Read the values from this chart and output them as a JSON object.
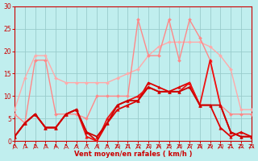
{
  "background_color": "#c0eeee",
  "grid_color": "#99cccc",
  "xlabel": "Vent moyen/en rafales ( km/h )",
  "xlim": [
    0,
    23
  ],
  "ylim": [
    0,
    30
  ],
  "yticks": [
    0,
    5,
    10,
    15,
    20,
    25,
    30
  ],
  "xticks": [
    0,
    1,
    2,
    3,
    4,
    5,
    6,
    7,
    8,
    9,
    10,
    11,
    12,
    13,
    14,
    15,
    16,
    17,
    18,
    19,
    20,
    21,
    22,
    23
  ],
  "series": [
    {
      "x": [
        0,
        1,
        2,
        3,
        4,
        5,
        6,
        7,
        8,
        9,
        10,
        11,
        12,
        13,
        14,
        15,
        16,
        17,
        18,
        19,
        20,
        21,
        22,
        23
      ],
      "y": [
        7,
        14,
        19,
        19,
        14,
        13,
        13,
        13,
        13,
        13,
        14,
        15,
        16,
        19,
        21,
        22,
        22,
        22,
        22,
        21,
        19,
        16,
        7,
        7
      ],
      "color": "#ffaaaa",
      "linewidth": 1.0,
      "marker": "D",
      "markersize": 2.0
    },
    {
      "x": [
        0,
        1,
        2,
        3,
        4,
        5,
        6,
        7,
        8,
        9,
        10,
        11,
        12,
        13,
        14,
        15,
        16,
        17,
        18,
        19,
        20,
        21,
        22,
        23
      ],
      "y": [
        6,
        4,
        18,
        18,
        6,
        6,
        6,
        5,
        10,
        10,
        10,
        10,
        27,
        19,
        19,
        27,
        18,
        27,
        23,
        18,
        8,
        6,
        6,
        6
      ],
      "color": "#ff8888",
      "linewidth": 1.0,
      "marker": "D",
      "markersize": 2.0
    },
    {
      "x": [
        0,
        1,
        2,
        3,
        4,
        5,
        6,
        7,
        8,
        9,
        10,
        11,
        12,
        13,
        14,
        15,
        16,
        17,
        18,
        19,
        20,
        21,
        22,
        23
      ],
      "y": [
        1,
        4,
        6,
        3,
        3,
        6,
        7,
        2,
        0,
        4,
        7,
        8,
        9,
        13,
        12,
        11,
        12,
        13,
        8,
        8,
        3,
        1,
        2,
        1
      ],
      "color": "#dd0000",
      "linewidth": 1.3,
      "marker": "^",
      "markersize": 2.5
    },
    {
      "x": [
        0,
        1,
        2,
        3,
        4,
        5,
        6,
        7,
        8,
        9,
        10,
        11,
        12,
        13,
        14,
        15,
        16,
        17,
        18,
        19,
        20,
        21,
        22,
        23
      ],
      "y": [
        1,
        4,
        6,
        3,
        3,
        6,
        7,
        1,
        0,
        5,
        8,
        9,
        10,
        12,
        11,
        11,
        11,
        13,
        8,
        18,
        8,
        2,
        1,
        1
      ],
      "color": "#ee1111",
      "linewidth": 1.3,
      "marker": "^",
      "markersize": 2.5
    },
    {
      "x": [
        0,
        1,
        2,
        3,
        4,
        5,
        6,
        7,
        8,
        9,
        10,
        11,
        12,
        13,
        14,
        15,
        16,
        17,
        18,
        19,
        20,
        21,
        22,
        23
      ],
      "y": [
        1,
        4,
        6,
        3,
        3,
        6,
        7,
        2,
        1,
        4,
        8,
        9,
        9,
        12,
        11,
        11,
        11,
        12,
        8,
        8,
        8,
        2,
        1,
        1
      ],
      "color": "#cc0000",
      "linewidth": 1.3,
      "marker": "^",
      "markersize": 2.5
    }
  ],
  "tick_color": "#cc0000",
  "label_color": "#cc0000",
  "spine_color": "#cc0000",
  "arrow_angles": [
    225,
    200,
    210,
    220,
    230,
    250,
    270,
    270,
    270,
    270,
    270,
    270,
    270,
    270,
    270,
    270,
    270,
    270,
    270,
    270,
    270,
    240,
    230,
    220
  ]
}
